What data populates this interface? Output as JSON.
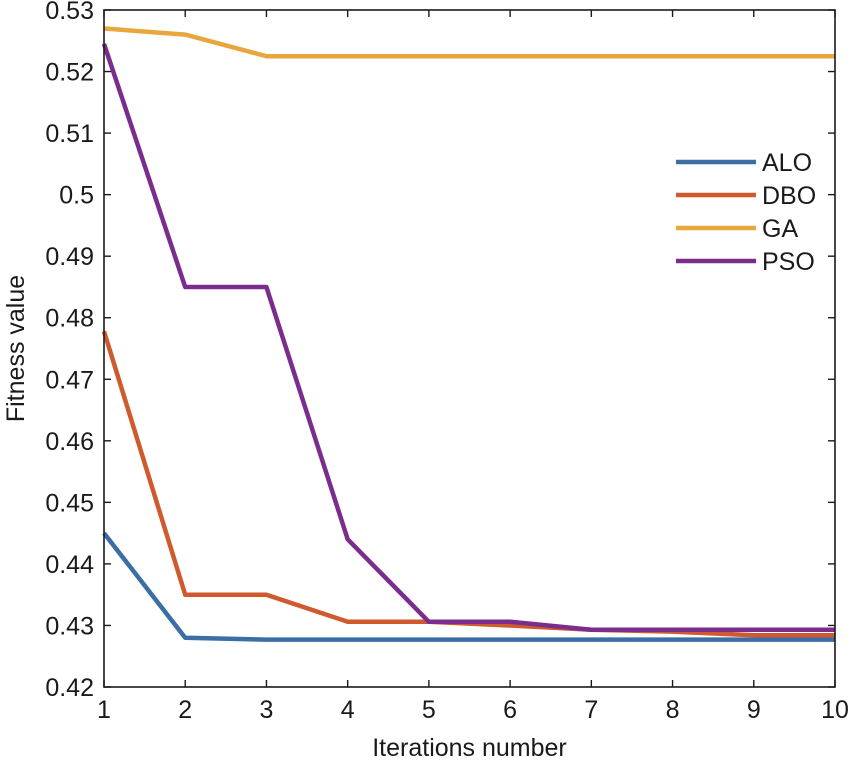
{
  "chart_data": {
    "type": "line",
    "title": "",
    "xlabel": "Iterations number",
    "ylabel": "Fitness value",
    "x": [
      1,
      2,
      3,
      4,
      5,
      6,
      7,
      8,
      9,
      10
    ],
    "xlim": [
      1,
      10
    ],
    "ylim": [
      0.42,
      0.53
    ],
    "xticks": [
      "1",
      "2",
      "3",
      "4",
      "5",
      "6",
      "7",
      "8",
      "9",
      "10"
    ],
    "yticks": [
      0.42,
      0.43,
      0.44,
      0.45,
      0.46,
      0.47,
      0.48,
      0.49,
      0.5,
      0.51,
      0.52,
      0.53
    ],
    "ytick_labels": [
      "0.42",
      "0.43",
      "0.44",
      "0.45",
      "0.46",
      "0.47",
      "0.48",
      "0.49",
      "0.5",
      "0.51",
      "0.52",
      "0.53"
    ],
    "grid": false,
    "legend_position": "right",
    "series": [
      {
        "name": "ALO",
        "color": "#3a6ea5",
        "values": [
          0.445,
          0.428,
          0.4277,
          0.4277,
          0.4277,
          0.4277,
          0.4277,
          0.4277,
          0.4277,
          0.4277
        ]
      },
      {
        "name": "DBO",
        "color": "#cf5a2e",
        "values": [
          0.4778,
          0.435,
          0.435,
          0.4306,
          0.4306,
          0.43,
          0.4293,
          0.429,
          0.4284,
          0.4284
        ]
      },
      {
        "name": "GA",
        "color": "#e7a73c",
        "values": [
          0.527,
          0.526,
          0.5225,
          0.5225,
          0.5225,
          0.5225,
          0.5225,
          0.5225,
          0.5225,
          0.5225
        ]
      },
      {
        "name": "PSO",
        "color": "#7b2d8e",
        "values": [
          0.5245,
          0.485,
          0.485,
          0.444,
          0.4306,
          0.4306,
          0.4293,
          0.4293,
          0.4293,
          0.4293
        ]
      }
    ]
  }
}
